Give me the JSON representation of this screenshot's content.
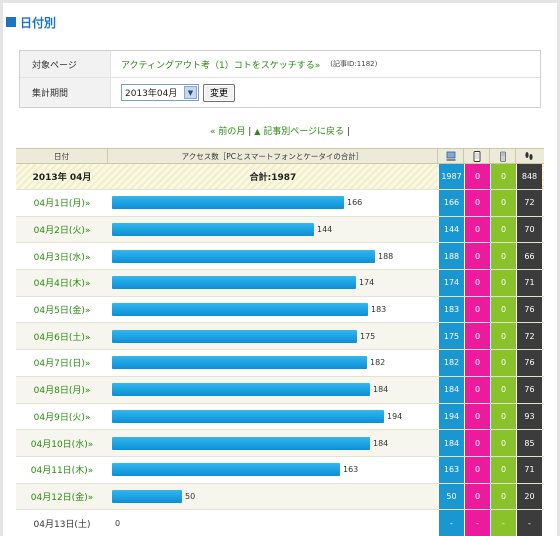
{
  "section_title": "日付別",
  "info": {
    "target_label": "対象ページ",
    "article_link": "アクティングアウト考（1）コトをスケッチする»",
    "article_id": "(記事ID:1182)",
    "period_label": "集計期間",
    "selected_month": "2013年04月",
    "change_button": "変更"
  },
  "nav": {
    "prev_month": "« 前の月",
    "separator1": "|",
    "back_icon": "▲",
    "back_link": "記事別ページに戻る",
    "separator2": "|"
  },
  "table": {
    "headers": {
      "date": "日付",
      "access": "アクセス数［PCとスマートフォンとケータイの合計］"
    },
    "header_icons": [
      "pc-icon",
      "smartphone-icon",
      "mobile-phone-icon",
      "footprint-icon"
    ],
    "total": {
      "month": "2013年 04月",
      "sum": "合計:1987",
      "pc": "1987",
      "sp": "0",
      "mb": "0",
      "ft": "848"
    },
    "max_value": 200,
    "rows": [
      {
        "date": "04月1日(月)»",
        "value": 166,
        "pc": "166",
        "sp": "0",
        "mb": "0",
        "ft": "72"
      },
      {
        "date": "04月2日(火)»",
        "value": 144,
        "pc": "144",
        "sp": "0",
        "mb": "0",
        "ft": "70"
      },
      {
        "date": "04月3日(水)»",
        "value": 188,
        "pc": "188",
        "sp": "0",
        "mb": "0",
        "ft": "66"
      },
      {
        "date": "04月4日(木)»",
        "value": 174,
        "pc": "174",
        "sp": "0",
        "mb": "0",
        "ft": "71"
      },
      {
        "date": "04月5日(金)»",
        "value": 183,
        "pc": "183",
        "sp": "0",
        "mb": "0",
        "ft": "76"
      },
      {
        "date": "04月6日(土)»",
        "value": 175,
        "pc": "175",
        "sp": "0",
        "mb": "0",
        "ft": "72"
      },
      {
        "date": "04月7日(日)»",
        "value": 182,
        "pc": "182",
        "sp": "0",
        "mb": "0",
        "ft": "76"
      },
      {
        "date": "04月8日(月)»",
        "value": 184,
        "pc": "184",
        "sp": "0",
        "mb": "0",
        "ft": "76"
      },
      {
        "date": "04月9日(火)»",
        "value": 194,
        "pc": "194",
        "sp": "0",
        "mb": "0",
        "ft": "93"
      },
      {
        "date": "04月10日(水)»",
        "value": 184,
        "pc": "184",
        "sp": "0",
        "mb": "0",
        "ft": "85"
      },
      {
        "date": "04月11日(木)»",
        "value": 163,
        "pc": "163",
        "sp": "0",
        "mb": "0",
        "ft": "71"
      },
      {
        "date": "04月12日(金)»",
        "value": 50,
        "pc": "50",
        "sp": "0",
        "mb": "0",
        "ft": "20"
      },
      {
        "date": "04月13日(土)",
        "value": 0,
        "pc": "-",
        "sp": "-",
        "mb": "-",
        "ft": "-",
        "no_link": true
      }
    ]
  },
  "colors": {
    "accent_blue": "#1d74c4",
    "link_green": "#2a8a12",
    "bar_blue": "#1aa3e3",
    "pc_blue": "#1a96d0",
    "smartphone_pink": "#ec1a9c",
    "mobile_green": "#89c22a",
    "footprint_dark": "#3c3c3c"
  }
}
